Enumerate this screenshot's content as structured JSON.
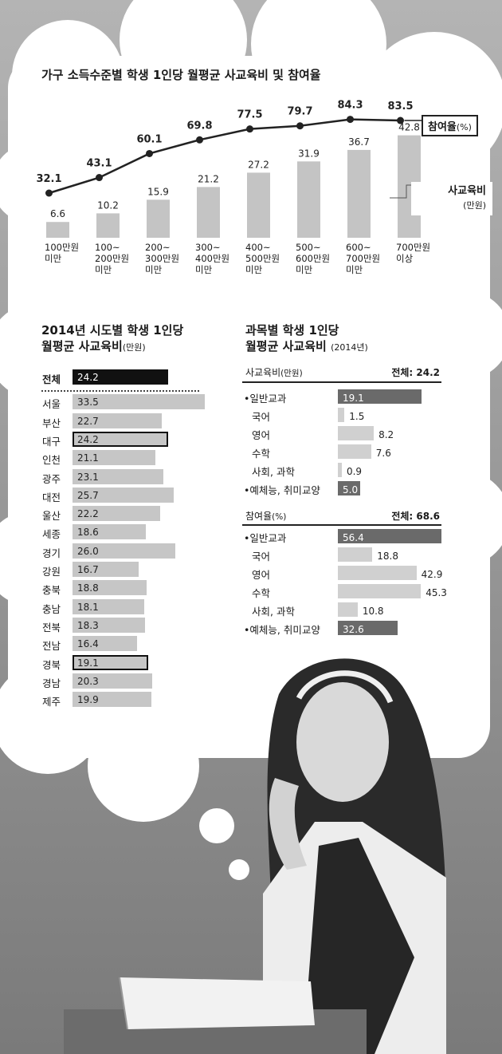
{
  "chart_data": [
    {
      "type": "bar+line",
      "title": "가구 소득수준별 학생 1인당 월평균 사교육비 및 참여율",
      "categories": [
        "100만원\n미만",
        "100~\n200만원\n미만",
        "200~\n300만원\n미만",
        "300~\n400만원\n미만",
        "400~\n500만원\n미만",
        "500~\n600만원\n미만",
        "600~\n700만원\n미만",
        "700만원\n이상"
      ],
      "series": [
        {
          "name": "사교육비",
          "unit": "(만원)",
          "type": "bar",
          "values": [
            6.6,
            10.2,
            15.9,
            21.2,
            27.2,
            31.9,
            36.7,
            42.8
          ]
        },
        {
          "name": "참여율",
          "unit": "(%)",
          "type": "line",
          "values": [
            32.1,
            43.1,
            60.1,
            69.8,
            77.5,
            79.7,
            84.3,
            83.5
          ]
        }
      ],
      "legend": {
        "line_label": "참여율",
        "line_unit": "(%)",
        "bar_label": "사교육비",
        "bar_unit": "(만원)"
      }
    },
    {
      "type": "bar",
      "orientation": "horizontal",
      "title_line1": "2014년 시도별 학생 1인당",
      "title_line2": "월평균 사교육비",
      "unit": "(만원)",
      "categories": [
        "전체",
        "서울",
        "부산",
        "대구",
        "인천",
        "광주",
        "대전",
        "울산",
        "세종",
        "경기",
        "강원",
        "충북",
        "충남",
        "전북",
        "전남",
        "경북",
        "경남",
        "제주"
      ],
      "values": [
        24.2,
        33.5,
        22.7,
        24.2,
        21.1,
        23.1,
        25.7,
        22.2,
        18.6,
        26.0,
        16.7,
        18.8,
        18.1,
        18.3,
        16.4,
        19.1,
        20.3,
        19.9
      ],
      "value_labels": [
        "24.2",
        "33.5",
        "22.7",
        "24.2",
        "21.1",
        "23.1",
        "25.7",
        "22.2",
        "18.6",
        "26.0",
        "16.7",
        "18.8",
        "18.1",
        "18.3",
        "16.4",
        "19.1",
        "20.3",
        "19.9"
      ],
      "highlight_total": "전체",
      "highlight_outlined": [
        "대구",
        "경북"
      ]
    },
    {
      "type": "bar",
      "orientation": "horizontal",
      "title_line1": "과목별 학생 1인당",
      "title_line2": "월평균 사교육비",
      "title_note": "(2014년)",
      "panels": [
        {
          "header": "사교육비",
          "header_unit": "(만원)",
          "total": "전체: 24.2",
          "categories": [
            "•일반교과",
            "국어",
            "영어",
            "수학",
            "사회, 과학",
            "•예체능, 취미교양"
          ],
          "values": [
            19.1,
            1.5,
            8.2,
            7.6,
            0.9,
            5.0
          ],
          "value_labels": [
            "19.1",
            "1.5",
            "8.2",
            "7.6",
            "0.9",
            "5.0"
          ],
          "dark": [
            true,
            false,
            false,
            false,
            false,
            true
          ]
        },
        {
          "header": "참여율",
          "header_unit": "(%)",
          "total": "전체: 68.6",
          "categories": [
            "•일반교과",
            "국어",
            "영어",
            "수학",
            "사회, 과학",
            "•예체능, 취미교양"
          ],
          "values": [
            56.4,
            18.8,
            42.9,
            45.3,
            10.8,
            32.6
          ],
          "value_labels": [
            "56.4",
            "18.8",
            "42.9",
            "45.3",
            "10.8",
            "32.6"
          ],
          "dark": [
            true,
            false,
            false,
            false,
            false,
            true
          ]
        }
      ]
    }
  ]
}
